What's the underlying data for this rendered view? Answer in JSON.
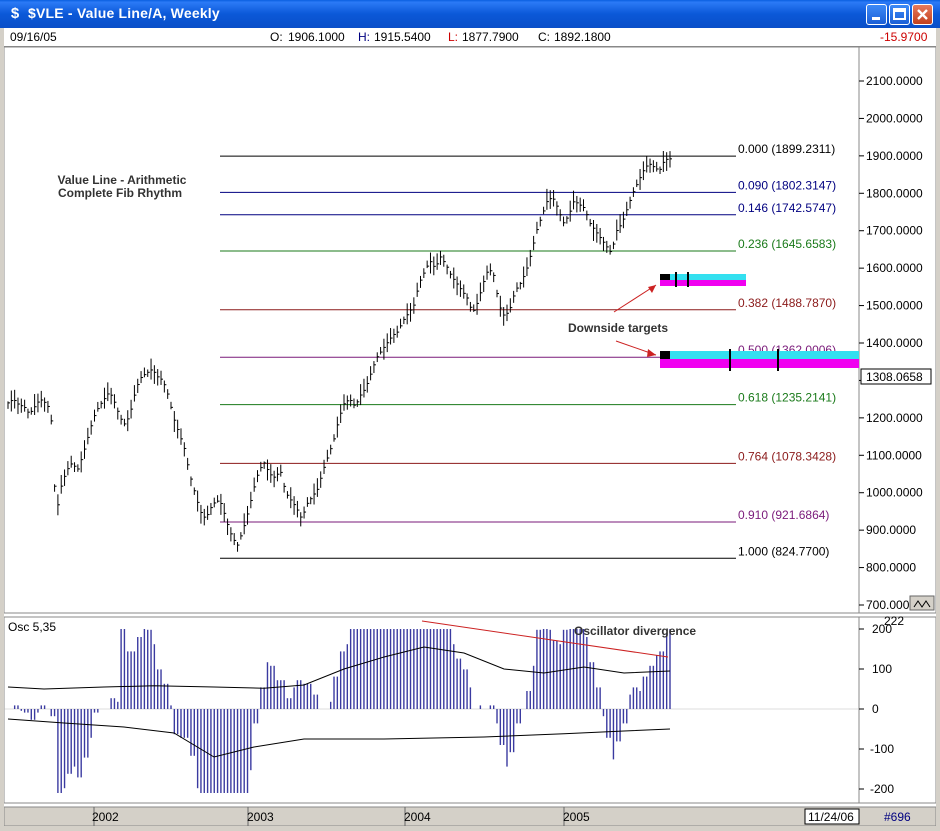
{
  "window": {
    "title": "$VLE - Value Line/A, Weekly",
    "icon": "dollar-icon",
    "buttons": [
      "minimize",
      "maximize",
      "close"
    ]
  },
  "infobar": {
    "date": "09/16/05",
    "o_label": "O:",
    "o_value": "1906.1000",
    "h_label": "H:",
    "h_value": "1915.5400",
    "l_label": "L:",
    "l_value": "1877.7900",
    "c_label": "C:",
    "c_value": "1892.1800",
    "change": "-15.9700"
  },
  "colors": {
    "bars": "#000000",
    "price_axis_bg": "#ffffff",
    "cyan_band": "#33e0f0",
    "magenta_band": "#f000f0",
    "osc_histogram": "#3a3aa0",
    "fib_green": "#1a7a1a",
    "fib_darkred": "#8b1a1a",
    "fib_navy": "#1a1a8b",
    "fib_purple": "#7a1a7a",
    "h_color": "#000080",
    "l_color": "#cc0000",
    "change_color": "#cc0000"
  },
  "annotations": {
    "chart_title_line1": "Value Line - Arithmetic",
    "chart_title_line2": "Complete Fib Rhythm",
    "downside": "Downside targets",
    "osc_divergence": "Oscillator divergence",
    "osc_label": "Osc 5,35"
  },
  "fib_levels": [
    {
      "ratio": 0.0,
      "label": "0.000 (1899.2311)",
      "price": 1899.2311,
      "color": "#000000"
    },
    {
      "ratio": 0.09,
      "label": "0.090 (1802.3147)",
      "price": 1802.3147,
      "color": "#000080"
    },
    {
      "ratio": 0.146,
      "label": "0.146 (1742.5747)",
      "price": 1742.5747,
      "color": "#000080"
    },
    {
      "ratio": 0.236,
      "label": "0.236 (1645.6583)",
      "price": 1645.6583,
      "color": "#1a7a1a"
    },
    {
      "ratio": 0.382,
      "label": "0.382 (1488.7870)",
      "price": 1488.787,
      "color": "#8b1a1a"
    },
    {
      "ratio": 0.5,
      "label": "0.500 (1362.0006)",
      "price": 1362.0006,
      "color": "#7a1a7a"
    },
    {
      "ratio": 0.618,
      "label": "0.618 (1235.2141)",
      "price": 1235.2141,
      "color": "#1a7a1a"
    },
    {
      "ratio": 0.764,
      "label": "0.764 (1078.3428)",
      "price": 1078.3428,
      "color": "#8b1a1a"
    },
    {
      "ratio": 0.91,
      "label": "0.910 (921.6864)",
      "price": 921.6864,
      "color": "#7a1a7a"
    },
    {
      "ratio": 1.0,
      "label": "1.000 (824.7700)",
      "price": 824.77,
      "color": "#000000"
    }
  ],
  "price_axis": {
    "ticks": [
      "2100.0000",
      "2000.0000",
      "1900.0000",
      "1800.0000",
      "1700.0000",
      "1600.0000",
      "1500.0000",
      "1400.0000",
      "1300.0000",
      "1200.0000",
      "1100.0000",
      "1000.0000",
      "900.0000",
      "800.0000",
      "700.0000"
    ],
    "last_price": "1308.0658",
    "ylim": [
      700,
      2100
    ]
  },
  "osc_axis": {
    "ticks": [
      "200",
      "100",
      "0",
      "-100",
      "-200"
    ],
    "top_label": "222",
    "ylim": [
      -200,
      200
    ]
  },
  "time_axis": {
    "years": [
      "2002",
      "2003",
      "2004",
      "2005"
    ],
    "end_date": "11/24/06",
    "counter": "#696"
  },
  "chart_data": {
    "type": "bar",
    "title": "Value Line - Arithmetic",
    "weekly_close": [
      1240,
      1250,
      1235,
      1230,
      1210,
      1230,
      1250,
      1240,
      1220,
      940,
      1020,
      1060,
      1080,
      1060,
      1100,
      1150,
      1200,
      1230,
      1250,
      1270,
      1240,
      1200,
      1180,
      1220,
      1280,
      1310,
      1320,
      1330,
      1310,
      1300,
      1260,
      1200,
      1160,
      1120,
      1050,
      1000,
      950,
      930,
      960,
      980,
      970,
      920,
      880,
      860,
      900,
      950,
      1010,
      1060,
      1080,
      1050,
      1040,
      1060,
      1000,
      980,
      960,
      930,
      970,
      990,
      1010,
      1060,
      1100,
      1140,
      1200,
      1240,
      1250,
      1230,
      1260,
      1280,
      1320,
      1360,
      1380,
      1400,
      1420,
      1430,
      1460,
      1480,
      1500,
      1560,
      1590,
      1620,
      1600,
      1630,
      1610,
      1580,
      1560,
      1540,
      1520,
      1480,
      1510,
      1560,
      1600,
      1580,
      1500,
      1470,
      1490,
      1540,
      1560,
      1590,
      1640,
      1700,
      1740,
      1780,
      1790,
      1760,
      1720,
      1740,
      1780,
      1770,
      1760,
      1720,
      1700,
      1680,
      1660,
      1640,
      1700,
      1720,
      1760,
      1800,
      1830,
      1860,
      1880,
      1870,
      1860,
      1890,
      1892
    ]
  }
}
